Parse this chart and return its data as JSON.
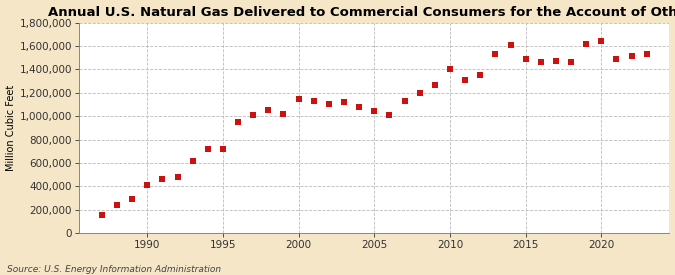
{
  "title": "Annual U.S. Natural Gas Delivered to Commercial Consumers for the Account of Others",
  "ylabel": "Million Cubic Feet",
  "source": "Source: U.S. Energy Information Administration",
  "outer_bg": "#f5e6c8",
  "plot_bg": "#ffffff",
  "dot_color": "#cc1111",
  "grid_color": "#bbbbbb",
  "years": [
    1987,
    1988,
    1989,
    1990,
    1991,
    1992,
    1993,
    1994,
    1995,
    1996,
    1997,
    1998,
    1999,
    2000,
    2001,
    2002,
    2003,
    2004,
    2005,
    2006,
    2007,
    2008,
    2009,
    2010,
    2011,
    2012,
    2013,
    2014,
    2015,
    2016,
    2017,
    2018,
    2019,
    2020,
    2021,
    2022,
    2023
  ],
  "values": [
    155000,
    240000,
    295000,
    410000,
    465000,
    480000,
    620000,
    720000,
    720000,
    950000,
    1010000,
    1050000,
    1020000,
    1150000,
    1130000,
    1100000,
    1120000,
    1080000,
    1040000,
    1010000,
    1130000,
    1200000,
    1270000,
    1400000,
    1310000,
    1350000,
    1530000,
    1610000,
    1490000,
    1460000,
    1470000,
    1460000,
    1620000,
    1640000,
    1490000,
    1510000,
    1530000
  ],
  "ylim": [
    0,
    1800000
  ],
  "yticks": [
    0,
    200000,
    400000,
    600000,
    800000,
    1000000,
    1200000,
    1400000,
    1600000,
    1800000
  ],
  "xlim": [
    1985.5,
    2024.5
  ],
  "xticks": [
    1990,
    1995,
    2000,
    2005,
    2010,
    2015,
    2020
  ],
  "title_fontsize": 9.5,
  "tick_fontsize": 7.5,
  "ylabel_fontsize": 7,
  "source_fontsize": 6.5
}
